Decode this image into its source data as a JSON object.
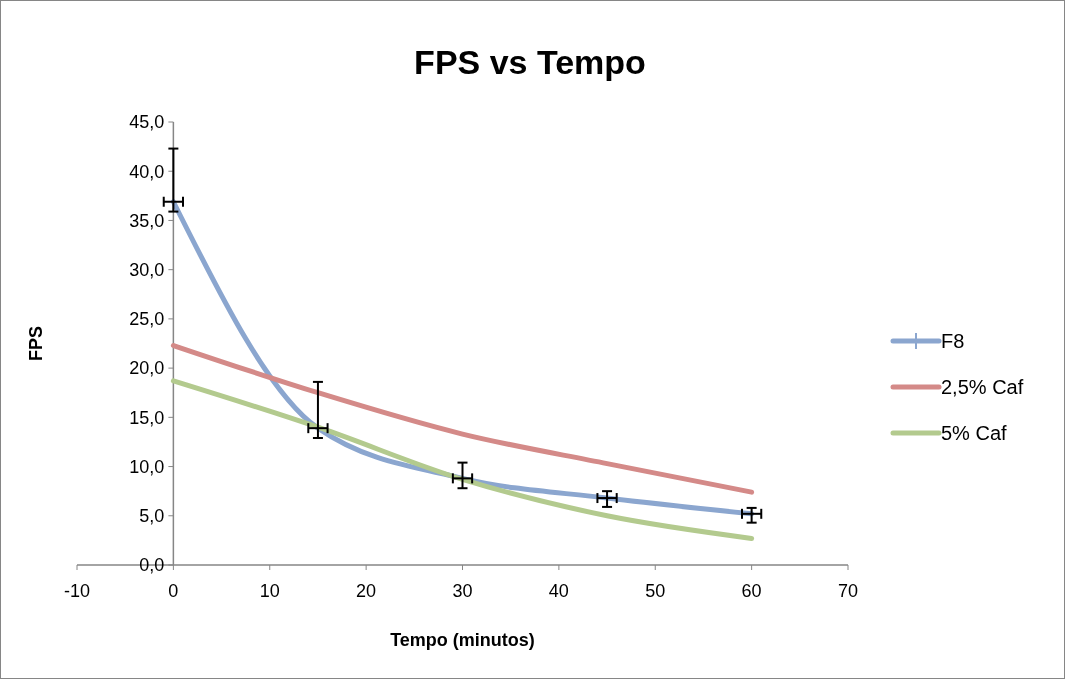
{
  "chart_data": {
    "type": "line",
    "title": "FPS vs Tempo",
    "xlabel": "Tempo (minutos)",
    "ylabel": "FPS",
    "x": [
      0,
      15,
      30,
      45,
      60
    ],
    "xlim": [
      -10,
      70
    ],
    "xticks": [
      -10,
      0,
      10,
      20,
      30,
      40,
      50,
      60,
      70
    ],
    "ylim": [
      0,
      45
    ],
    "yticks": [
      {
        "value": 0,
        "label": "0,0"
      },
      {
        "value": 5,
        "label": "5,0"
      },
      {
        "value": 10,
        "label": "10,0"
      },
      {
        "value": 15,
        "label": "15,0"
      },
      {
        "value": 20,
        "label": "20,0"
      },
      {
        "value": 25,
        "label": "25,0"
      },
      {
        "value": 30,
        "label": "30,0"
      },
      {
        "value": 35,
        "label": "35,0"
      },
      {
        "value": 40,
        "label": "40,0"
      },
      {
        "value": 45,
        "label": "45,0"
      }
    ],
    "grid": false,
    "legend": "right",
    "marker": "none",
    "line_style": "solid",
    "series": [
      {
        "name": "F8",
        "color": "#8ba6cf",
        "values": [
          36.9,
          13.9,
          8.8,
          6.8,
          5.2
        ],
        "errors": [
          [
            35.9,
            42.3
          ],
          [
            12.9,
            18.6
          ],
          [
            7.8,
            10.4
          ],
          [
            5.9,
            7.5
          ],
          [
            4.3,
            5.8
          ]
        ],
        "xerrors": [
          1,
          1,
          1,
          1,
          1
        ]
      },
      {
        "name": "2,5% Caf",
        "color": "#d48a88",
        "values": [
          22.3,
          17.5,
          13.3,
          10.3,
          7.4
        ]
      },
      {
        "name": "5% Caf",
        "color": "#b3ca8e",
        "values": [
          18.7,
          14.0,
          8.7,
          5.0,
          2.7
        ]
      }
    ]
  }
}
